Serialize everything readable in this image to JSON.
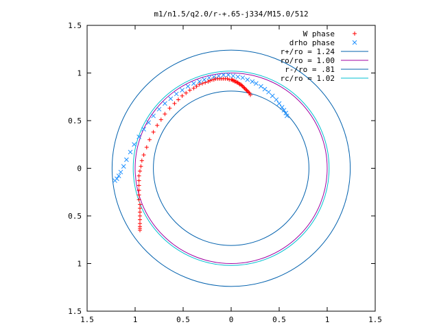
{
  "chart_data": {
    "type": "scatter",
    "title": "m1/n1.5/q2.0/r-+.65-j334/M15.0/512",
    "xlabel": "",
    "ylabel": "",
    "xlim": [
      -1.5,
      1.5
    ],
    "ylim": [
      -1.5,
      1.5
    ],
    "x_ticks": [
      {
        "value": -1.5,
        "label": "1.5"
      },
      {
        "value": -1.0,
        "label": "1"
      },
      {
        "value": -0.5,
        "label": "0.5"
      },
      {
        "value": 0.0,
        "label": "0"
      },
      {
        "value": 0.5,
        "label": "0.5"
      },
      {
        "value": 1.0,
        "label": "1"
      },
      {
        "value": 1.5,
        "label": "1.5"
      }
    ],
    "y_ticks": [
      {
        "value": 1.5,
        "label": "1.5"
      },
      {
        "value": 1.0,
        "label": "1"
      },
      {
        "value": 0.5,
        "label": "0.5"
      },
      {
        "value": 0.0,
        "label": "0"
      },
      {
        "value": -0.5,
        "label": "0.5"
      },
      {
        "value": -1.0,
        "label": "1"
      },
      {
        "value": -1.5,
        "label": "1.5"
      }
    ],
    "grid": false,
    "legend_position": "top-right",
    "scatter_series": [
      {
        "name": "W phase",
        "marker": "plus",
        "color": "#ff0000",
        "points": [
          [
            0.2,
            0.77
          ],
          [
            0.19,
            0.79
          ],
          [
            0.18,
            0.8
          ],
          [
            0.17,
            0.81
          ],
          [
            0.16,
            0.82
          ],
          [
            0.15,
            0.83
          ],
          [
            0.14,
            0.84
          ],
          [
            0.13,
            0.85
          ],
          [
            0.12,
            0.86
          ],
          [
            0.11,
            0.87
          ],
          [
            0.1,
            0.88
          ],
          [
            0.09,
            0.88
          ],
          [
            0.08,
            0.89
          ],
          [
            0.07,
            0.9
          ],
          [
            0.06,
            0.9
          ],
          [
            0.05,
            0.91
          ],
          [
            0.04,
            0.91
          ],
          [
            0.03,
            0.92
          ],
          [
            0.02,
            0.92
          ],
          [
            0.01,
            0.93
          ],
          [
            0.0,
            0.93
          ],
          [
            -0.02,
            0.93
          ],
          [
            -0.04,
            0.94
          ],
          [
            -0.06,
            0.94
          ],
          [
            -0.08,
            0.94
          ],
          [
            -0.1,
            0.94
          ],
          [
            -0.12,
            0.94
          ],
          [
            -0.14,
            0.94
          ],
          [
            -0.16,
            0.94
          ],
          [
            -0.18,
            0.93
          ],
          [
            -0.2,
            0.93
          ],
          [
            -0.22,
            0.92
          ],
          [
            -0.24,
            0.91
          ],
          [
            -0.27,
            0.9
          ],
          [
            -0.3,
            0.89
          ],
          [
            -0.33,
            0.88
          ],
          [
            -0.36,
            0.86
          ],
          [
            -0.39,
            0.84
          ],
          [
            -0.43,
            0.82
          ],
          [
            -0.47,
            0.79
          ],
          [
            -0.51,
            0.76
          ],
          [
            -0.55,
            0.72
          ],
          [
            -0.59,
            0.68
          ],
          [
            -0.64,
            0.63
          ],
          [
            -0.69,
            0.57
          ],
          [
            -0.73,
            0.51
          ],
          [
            -0.77,
            0.45
          ],
          [
            -0.81,
            0.38
          ],
          [
            -0.85,
            0.3
          ],
          [
            -0.88,
            0.22
          ],
          [
            -0.91,
            0.14
          ],
          [
            -0.93,
            0.08
          ],
          [
            -0.94,
            0.02
          ],
          [
            -0.95,
            -0.03
          ],
          [
            -0.96,
            -0.08
          ],
          [
            -0.96,
            -0.13
          ],
          [
            -0.96,
            -0.18
          ],
          [
            -0.96,
            -0.23
          ],
          [
            -0.96,
            -0.28
          ],
          [
            -0.96,
            -0.33
          ],
          [
            -0.95,
            -0.38
          ],
          [
            -0.95,
            -0.42
          ],
          [
            -0.95,
            -0.46
          ],
          [
            -0.95,
            -0.5
          ],
          [
            -0.95,
            -0.54
          ],
          [
            -0.95,
            -0.58
          ],
          [
            -0.95,
            -0.61
          ],
          [
            -0.95,
            -0.63
          ],
          [
            -0.95,
            -0.65
          ]
        ]
      },
      {
        "name": "drho phase",
        "marker": "cross",
        "color": "#1e90ff",
        "points": [
          [
            0.58,
            0.55
          ],
          [
            0.57,
            0.58
          ],
          [
            0.55,
            0.61
          ],
          [
            0.53,
            0.64
          ],
          [
            0.5,
            0.68
          ],
          [
            0.47,
            0.72
          ],
          [
            0.43,
            0.76
          ],
          [
            0.39,
            0.8
          ],
          [
            0.35,
            0.83
          ],
          [
            0.31,
            0.86
          ],
          [
            0.26,
            0.89
          ],
          [
            0.22,
            0.91
          ],
          [
            0.17,
            0.93
          ],
          [
            0.12,
            0.95
          ],
          [
            0.07,
            0.96
          ],
          [
            0.02,
            0.97
          ],
          [
            -0.03,
            0.98
          ],
          [
            -0.08,
            0.98
          ],
          [
            -0.13,
            0.97
          ],
          [
            -0.18,
            0.96
          ],
          [
            -0.23,
            0.95
          ],
          [
            -0.28,
            0.93
          ],
          [
            -0.33,
            0.91
          ],
          [
            -0.39,
            0.89
          ],
          [
            -0.45,
            0.86
          ],
          [
            -0.51,
            0.82
          ],
          [
            -0.57,
            0.78
          ],
          [
            -0.63,
            0.73
          ],
          [
            -0.69,
            0.68
          ],
          [
            -0.75,
            0.62
          ],
          [
            -0.81,
            0.55
          ],
          [
            -0.86,
            0.48
          ],
          [
            -0.91,
            0.41
          ],
          [
            -0.96,
            0.33
          ],
          [
            -1.01,
            0.25
          ],
          [
            -1.05,
            0.17
          ],
          [
            -1.09,
            0.09
          ],
          [
            -1.12,
            0.02
          ],
          [
            -1.15,
            -0.04
          ],
          [
            -1.17,
            -0.08
          ],
          [
            -1.19,
            -0.11
          ],
          [
            -1.21,
            -0.13
          ]
        ]
      }
    ],
    "circle_series": [
      {
        "name": "r+/ro = 1.24",
        "label": "r+/ro = 1.24",
        "radius": 1.24,
        "center": [
          0,
          0
        ],
        "color": "#0060ad"
      },
      {
        "name": "ro/ro = 1.00",
        "label": "ro/ro = 1.00",
        "radius": 1.0,
        "center": [
          0,
          0
        ],
        "color": "#a000a0"
      },
      {
        "name": "r-/ro = .81",
        "label": "r-/ro = .81",
        "radius": 0.81,
        "center": [
          0,
          0
        ],
        "color": "#0060ad"
      },
      {
        "name": "rc/ro = 1.02",
        "label": "rc/ro = 1.02",
        "radius": 1.02,
        "center": [
          0,
          0
        ],
        "color": "#00bfd0"
      }
    ]
  }
}
